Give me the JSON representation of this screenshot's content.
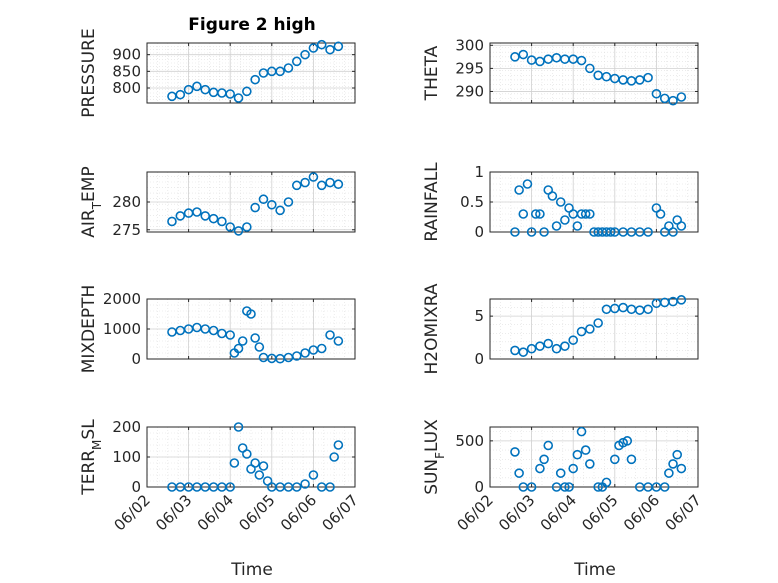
{
  "title": "Figure 2 high",
  "colors": {
    "marker": "#0072BD",
    "axis": "#262626",
    "grid": "#dfdfdf"
  },
  "chart_data": [
    {
      "type": "scatter",
      "ylabel": "PRESSURE",
      "ylim": [
        755,
        935
      ],
      "yticks": [
        800,
        850,
        900
      ],
      "yticklabels": [
        "800",
        "850",
        "900"
      ],
      "grid": true,
      "minor_grid": true,
      "x": [
        2.6,
        2.8,
        3.0,
        3.2,
        3.4,
        3.6,
        3.8,
        4.0,
        4.2,
        4.4,
        4.6,
        4.8,
        5.0,
        5.2,
        5.4,
        5.6,
        5.8,
        6.0,
        6.2,
        6.4,
        6.6
      ],
      "y": [
        775,
        780,
        795,
        805,
        795,
        787,
        785,
        782,
        770,
        790,
        825,
        845,
        850,
        850,
        860,
        880,
        900,
        920,
        930,
        915,
        925
      ]
    },
    {
      "type": "scatter",
      "ylabel": "THETA",
      "ylim": [
        287.5,
        300.5
      ],
      "yticks": [
        290,
        295,
        300
      ],
      "yticklabels": [
        "290",
        "295",
        "300"
      ],
      "grid": true,
      "minor_grid": true,
      "x": [
        2.6,
        2.8,
        3.0,
        3.2,
        3.4,
        3.6,
        3.8,
        4.0,
        4.2,
        4.4,
        4.6,
        4.8,
        5.0,
        5.2,
        5.4,
        5.6,
        5.8,
        6.0,
        6.2,
        6.4,
        6.6
      ],
      "y": [
        297.5,
        298,
        296.8,
        296.5,
        297,
        297.3,
        297,
        297,
        296.7,
        295,
        293.5,
        293.2,
        292.8,
        292.5,
        292.3,
        292.5,
        293,
        289.5,
        288.5,
        288,
        288.8
      ]
    },
    {
      "type": "scatter",
      "ylabel": "AIR_TEMP",
      "ylim": [
        274.6,
        285.4
      ],
      "yticks": [
        275,
        280
      ],
      "yticklabels": [
        "275",
        "280"
      ],
      "grid": true,
      "minor_grid": true,
      "x": [
        2.6,
        2.8,
        3.0,
        3.2,
        3.4,
        3.6,
        3.8,
        4.0,
        4.2,
        4.4,
        4.6,
        4.8,
        5.0,
        5.2,
        5.4,
        5.6,
        5.8,
        6.0,
        6.2,
        6.4,
        6.6
      ],
      "y": [
        276.5,
        277.5,
        278,
        278.2,
        277.5,
        277,
        276.5,
        275.5,
        274.8,
        275.5,
        279,
        280.5,
        279.5,
        278.5,
        280,
        283,
        283.5,
        284.5,
        283,
        283.5,
        283.2
      ]
    },
    {
      "type": "scatter",
      "ylabel": "RAINFALL",
      "ylim": [
        0,
        1
      ],
      "yticks": [
        0,
        0.5,
        1
      ],
      "yticklabels": [
        "0",
        "0.5",
        "1"
      ],
      "grid": true,
      "minor_grid": true,
      "x": [
        2.6,
        2.7,
        2.8,
        2.9,
        3.0,
        3.1,
        3.2,
        3.3,
        3.4,
        3.5,
        3.6,
        3.7,
        3.8,
        3.9,
        4.0,
        4.1,
        4.2,
        4.3,
        4.4,
        4.5,
        4.6,
        4.7,
        4.8,
        4.9,
        5.0,
        5.2,
        5.4,
        5.6,
        5.8,
        6.0,
        6.1,
        6.2,
        6.3,
        6.4,
        6.5,
        6.6
      ],
      "y": [
        0,
        0.7,
        0.3,
        0.8,
        0,
        0.3,
        0.3,
        0,
        0.7,
        0.6,
        0.1,
        0.5,
        0.2,
        0.4,
        0.3,
        0.1,
        0.3,
        0.3,
        0.3,
        0,
        0,
        0,
        0,
        0,
        0,
        0,
        0,
        0,
        0,
        0.4,
        0.3,
        0,
        0.1,
        0,
        0.2,
        0.1
      ]
    },
    {
      "type": "scatter",
      "ylabel": "MIXDEPTH",
      "ylim": [
        0,
        2000
      ],
      "yticks": [
        0,
        1000,
        2000
      ],
      "yticklabels": [
        "0",
        "1000",
        "2000"
      ],
      "grid": true,
      "minor_grid": true,
      "x": [
        2.6,
        2.8,
        3.0,
        3.2,
        3.4,
        3.6,
        3.8,
        4.0,
        4.1,
        4.2,
        4.3,
        4.4,
        4.5,
        4.6,
        4.7,
        4.8,
        5.0,
        5.2,
        5.4,
        5.6,
        5.8,
        6.0,
        6.2,
        6.4,
        6.6
      ],
      "y": [
        900,
        950,
        1000,
        1050,
        1000,
        950,
        850,
        800,
        200,
        350,
        600,
        1600,
        1500,
        700,
        400,
        50,
        20,
        10,
        50,
        100,
        200,
        300,
        350,
        800,
        600
      ]
    },
    {
      "type": "scatter",
      "ylabel": "H2OMIXRA",
      "ylim": [
        0,
        7
      ],
      "yticks": [
        0,
        5
      ],
      "yticklabels": [
        "0",
        "5"
      ],
      "grid": true,
      "minor_grid": true,
      "x": [
        2.6,
        2.8,
        3.0,
        3.2,
        3.4,
        3.6,
        3.8,
        4.0,
        4.2,
        4.4,
        4.6,
        4.8,
        5.0,
        5.2,
        5.4,
        5.6,
        5.8,
        6.0,
        6.2,
        6.4,
        6.6
      ],
      "y": [
        1,
        0.8,
        1.2,
        1.5,
        1.8,
        1.2,
        1.5,
        2.2,
        3.2,
        3.5,
        4.2,
        5.8,
        5.9,
        6,
        5.8,
        5.7,
        5.8,
        6.5,
        6.6,
        6.7,
        6.9
      ]
    },
    {
      "type": "scatter",
      "ylabel": "TERR_MSL",
      "ylim": [
        0,
        200
      ],
      "yticks": [
        0,
        100,
        200
      ],
      "yticklabels": [
        "0",
        "100",
        "200"
      ],
      "grid": true,
      "minor_grid": true,
      "x": [
        2.6,
        2.8,
        3.0,
        3.2,
        3.4,
        3.6,
        3.8,
        4.0,
        4.1,
        4.2,
        4.3,
        4.4,
        4.5,
        4.6,
        4.7,
        4.8,
        4.9,
        5.0,
        5.2,
        5.4,
        5.6,
        5.8,
        6.0,
        6.2,
        6.4,
        6.5,
        6.6
      ],
      "y": [
        0,
        0,
        0,
        0,
        0,
        0,
        0,
        0,
        80,
        200,
        130,
        110,
        60,
        80,
        40,
        70,
        20,
        0,
        0,
        0,
        0,
        10,
        40,
        0,
        0,
        100,
        140
      ]
    },
    {
      "type": "scatter",
      "ylabel": "SUN_FLUX",
      "ylim": [
        0,
        650
      ],
      "yticks": [
        0,
        500
      ],
      "yticklabels": [
        "0",
        "500"
      ],
      "grid": true,
      "minor_grid": true,
      "x": [
        2.6,
        2.7,
        2.8,
        3.0,
        3.2,
        3.3,
        3.4,
        3.6,
        3.7,
        3.8,
        3.9,
        4.0,
        4.1,
        4.2,
        4.3,
        4.4,
        4.6,
        4.7,
        4.8,
        5.0,
        5.1,
        5.2,
        5.3,
        5.4,
        5.6,
        5.8,
        6.0,
        6.2,
        6.3,
        6.4,
        6.5,
        6.6
      ],
      "y": [
        380,
        150,
        0,
        0,
        200,
        300,
        450,
        0,
        150,
        0,
        0,
        200,
        350,
        600,
        400,
        250,
        0,
        0,
        50,
        300,
        450,
        480,
        500,
        300,
        0,
        0,
        0,
        0,
        150,
        250,
        350,
        200
      ]
    }
  ],
  "xaxis": {
    "label": "Time",
    "xlim": [
      2,
      7
    ],
    "ticks": [
      2,
      3,
      4,
      5,
      6,
      7
    ],
    "ticklabels": [
      "06/02",
      "06/03",
      "06/04",
      "06/05",
      "06/06",
      "06/07"
    ]
  }
}
